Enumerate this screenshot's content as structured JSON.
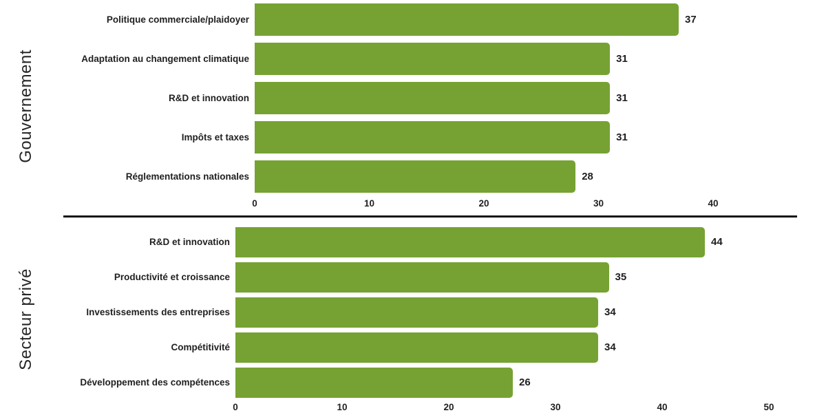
{
  "colors": {
    "bar": "#76A233",
    "divider": "#111111",
    "text": "#1f1f1f"
  },
  "chart_data": [
    {
      "type": "bar",
      "orientation": "horizontal",
      "group": "Gouvernement",
      "categories": [
        "Politique commerciale/plaidoyer",
        "Adaptation au changement climatique",
        "R&D et innovation",
        "Impôts et taxes",
        "Réglementations nationales"
      ],
      "values": [
        37,
        31,
        31,
        31,
        28
      ],
      "value_labels": [
        "37",
        "31",
        "31",
        "31",
        "28"
      ],
      "xticks": [
        0,
        10,
        20,
        30,
        40
      ],
      "xlim": [
        0,
        50
      ],
      "bar_color": "#76A233",
      "grid": false,
      "legend": false
    },
    {
      "type": "bar",
      "orientation": "horizontal",
      "group": "Secteur privé",
      "categories": [
        "R&D et innovation",
        "Productivité et croissance",
        "Investissements des entreprises",
        "Compétitivité",
        "Développement des compétences"
      ],
      "values": [
        44,
        35,
        34,
        34,
        26
      ],
      "value_labels": [
        "44",
        "35",
        "34",
        "34",
        "26"
      ],
      "xticks": [
        0,
        10,
        20,
        30,
        40,
        50
      ],
      "xlim": [
        0,
        55
      ],
      "bar_color": "#76A233",
      "grid": false,
      "legend": false
    }
  ]
}
